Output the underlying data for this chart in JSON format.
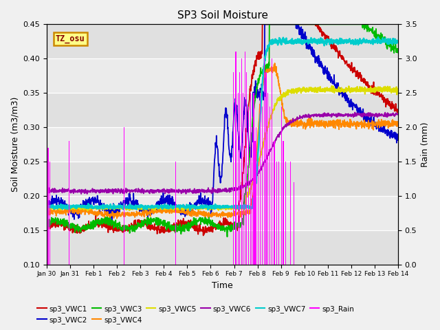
{
  "title": "SP3 Soil Moisture",
  "xlabel": "Time",
  "ylabel_left": "Soil Moisture (m3/m3)",
  "ylabel_right": "Rain (mm)",
  "ylim_left": [
    0.1,
    0.45
  ],
  "ylim_right": [
    0.0,
    3.5
  ],
  "bg_color": "#f0f0f0",
  "plot_bg_dark": "#d8d8d8",
  "plot_bg_light": "#e8e8e8",
  "colors": {
    "VWC1": "#cc0000",
    "VWC2": "#0000cc",
    "VWC3": "#00bb00",
    "VWC4": "#ff8800",
    "VWC5": "#dddd00",
    "VWC6": "#9900aa",
    "VWC7": "#00cccc",
    "Rain": "#ff00ff"
  },
  "tick_labels": [
    "Jan 30",
    "Jan 31",
    "Feb 1",
    "Feb 2",
    "Feb 3",
    "Feb 4",
    "Feb 5",
    "Feb 6",
    "Feb 7",
    "Feb 8",
    "Feb 9",
    "Feb 10",
    "Feb 11",
    "Feb 12",
    "Feb 13",
    "Feb 14"
  ],
  "tz_label": "TZ_osu",
  "tz_color": "#880000",
  "tz_bg": "#ffff88",
  "tz_border": "#cc8800"
}
